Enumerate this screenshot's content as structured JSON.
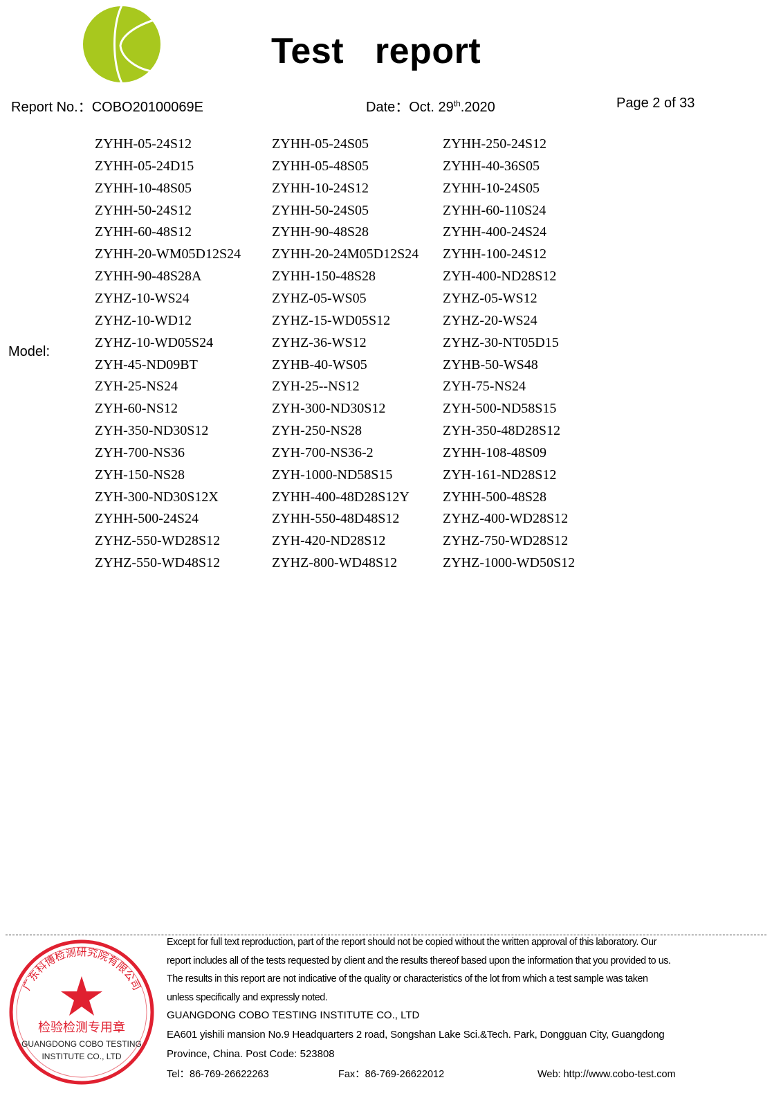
{
  "header": {
    "title": "Test   report",
    "report_no": "Report No.：COBO20100069E",
    "date_prefix": "Date：Oct. 29",
    "date_sup": "th",
    "date_suffix": ".2020",
    "page": "Page 2 of 33",
    "logo_color": "#a8c81e"
  },
  "model": {
    "label": "Model:",
    "rows": [
      [
        "ZYHH-05-24S12",
        "ZYHH-05-24S05",
        "ZYHH-250-24S12"
      ],
      [
        "ZYHH-05-24D15",
        "ZYHH-05-48S05",
        "ZYHH-40-36S05"
      ],
      [
        "ZYHH-10-48S05",
        "ZYHH-10-24S12",
        "ZYHH-10-24S05"
      ],
      [
        "ZYHH-50-24S12",
        "ZYHH-50-24S05",
        "ZYHH-60-110S24"
      ],
      [
        "ZYHH-60-48S12",
        "ZYHH-90-48S28",
        "ZYHH-400-24S24"
      ],
      [
        "ZYHH-20-WM05D12S24",
        "ZYHH-20-24M05D12S24",
        "ZYHH-100-24S12"
      ],
      [
        "ZYHH-90-48S28A",
        "ZYHH-150-48S28",
        "ZYH-400-ND28S12"
      ],
      [
        "ZYHZ-10-WS24",
        "ZYHZ-05-WS05",
        "ZYHZ-05-WS12"
      ],
      [
        "ZYHZ-10-WD12",
        "ZYHZ-15-WD05S12",
        "ZYHZ-20-WS24"
      ],
      [
        "ZYHZ-10-WD05S24",
        "ZYHZ-36-WS12",
        "ZYHZ-30-NT05D15"
      ],
      [
        "ZYH-45-ND09BT",
        "ZYHB-40-WS05",
        "ZYHB-50-WS48"
      ],
      [
        "ZYH-25-NS24",
        "ZYH-25--NS12",
        "ZYH-75-NS24"
      ],
      [
        "ZYH-60-NS12",
        "ZYH-300-ND30S12",
        "ZYH-500-ND58S15"
      ],
      [
        "ZYH-350-ND30S12",
        "ZYH-250-NS28",
        "ZYH-350-48D28S12"
      ],
      [
        "ZYH-700-NS36",
        "ZYH-700-NS36-2",
        "ZYHH-108-48S09"
      ],
      [
        "ZYH-150-NS28",
        "ZYH-1000-ND58S15",
        "ZYH-161-ND28S12"
      ],
      [
        "ZYH-300-ND30S12X",
        "ZYHH-400-48D28S12Y",
        "ZYHH-500-48S28"
      ],
      [
        "ZYHH-500-24S24",
        "ZYHH-550-48D48S12",
        "ZYHZ-400-WD28S12"
      ],
      [
        "ZYHZ-550-WD28S12",
        "ZYH-420-ND28S12",
        "ZYHZ-750-WD28S12"
      ],
      [
        "ZYHZ-550-WD48S12",
        "ZYHZ-800-WD48S12",
        "ZYHZ-1000-WD50S12"
      ]
    ]
  },
  "footer": {
    "disclaimer": [
      "Except for full text reproduction, part of the report should not be copied without the written approval of this laboratory. Our",
      "report includes all of the tests requested by client and the results thereof based upon the information that you provided to us.",
      "The results in this report are not indicative of the quality or characteristics of the lot from which a test sample was taken",
      "unless specifically and expressly noted."
    ],
    "company": "GUANGDONG COBO TESTING INSTITUTE CO., LTD",
    "address1": "EA601 yishili mansion No.9 Headquarters 2 road, Songshan Lake Sci.&Tech. Park, Dongguan City, Guangdong",
    "address2": "Province, China. Post Code: 523808",
    "tel": "Tel：86-769-26622263",
    "fax": "Fax：86-769-26622012",
    "web": "Web: http://www.cobo-test.com"
  },
  "stamp": {
    "color": "#e02030",
    "outer_text": "广东科博检测研究院有限公司",
    "inner_text": "检验检测专用章",
    "overlay_line1": "GUANGDONG COBO TESTING",
    "overlay_line2": "INSTITUTE CO., LTD",
    "bottom_arc": "GUANGDONG COBO TESTING INSTITUTE CO.,LTD"
  }
}
